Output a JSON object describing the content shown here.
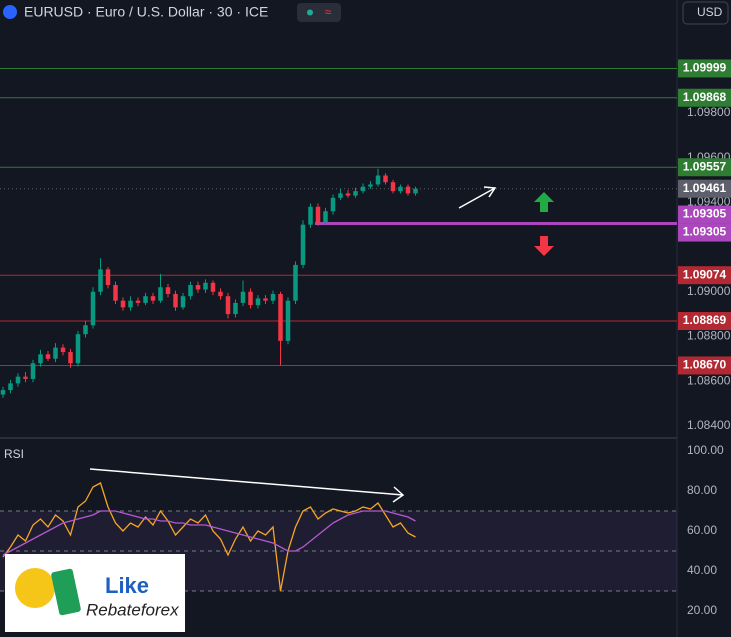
{
  "toolbar": {
    "currency": "USD"
  },
  "logo": {
    "line1": "Like",
    "line2": "Rebateforex"
  },
  "chart_data": [
    {
      "type": "candlestick",
      "title": "EURUSD · Euro / U.S. Dollar · 30 · ICE",
      "up_color": "#089981",
      "down_color": "#f23645",
      "ylim": [
        1.0835,
        1.1018
      ],
      "yticks": [
        {
          "value": 1.098,
          "label": "1.09800"
        },
        {
          "value": 1.096,
          "label": "1.09600"
        },
        {
          "value": 1.094,
          "label": "1.09400"
        },
        {
          "value": 1.09,
          "label": "1.09000"
        },
        {
          "value": 1.088,
          "label": "1.08800"
        },
        {
          "value": 1.086,
          "label": "1.08600"
        },
        {
          "value": 1.084,
          "label": "1.08400"
        }
      ],
      "levels": [
        {
          "price": 1.09999,
          "color": "#2e7d32",
          "line_width": 1
        },
        {
          "price": 1.09868,
          "color": "#2e7d32",
          "line_width": 1
        },
        {
          "price": 1.09557,
          "color": "#2e7d32",
          "line_width": 1
        },
        {
          "price": 1.09461,
          "color": "#5d606b",
          "line_width": 1,
          "dotted": true
        },
        {
          "price": 1.09305,
          "color": "#ab47bc",
          "line_width": 3,
          "label_count": 2
        },
        {
          "price": 1.09074,
          "color": "#b22833",
          "line_width": 1
        },
        {
          "price": 1.08869,
          "color": "#b22833",
          "line_width": 1
        },
        {
          "price": {
            "value": 1.0867,
            "label": "1.08670"
          },
          "color": "#b22833",
          "line_width": 1
        }
      ],
      "open": [
        1.0854,
        1.0856,
        1.0859,
        1.0862,
        1.0861,
        1.0868,
        1.0872,
        1.087,
        1.0875,
        1.0873,
        1.0868,
        1.0881,
        1.0885,
        1.09,
        1.091,
        1.0903,
        1.0896,
        1.0893,
        1.0896,
        1.0895,
        1.0898,
        1.0896,
        1.0902,
        1.0899,
        1.0893,
        1.0898,
        1.0903,
        1.0901,
        1.0904,
        1.09,
        1.0898,
        1.089,
        1.0895,
        1.09,
        1.0894,
        1.0897,
        1.0896,
        1.0899,
        1.0878,
        1.0896,
        1.0912,
        1.093,
        1.0938,
        1.0931,
        1.0936,
        1.0942,
        1.0944,
        1.0943,
        1.0945,
        1.0947,
        1.0948,
        1.0952,
        1.0949,
        1.0945,
        1.0947,
        1.0944
      ],
      "high": [
        1.08575,
        1.08605,
        1.08635,
        1.0864,
        1.08695,
        1.0874,
        1.08735,
        1.0877,
        1.08765,
        1.08745,
        1.08825,
        1.0887,
        1.0902,
        1.0915,
        1.0911,
        1.09045,
        1.08975,
        1.0898,
        1.08975,
        1.08995,
        1.08995,
        1.0908,
        1.09035,
        1.09005,
        1.08995,
        1.09045,
        1.09045,
        1.09055,
        1.0905,
        1.09015,
        1.08995,
        1.08965,
        1.0905,
        1.09015,
        1.08985,
        1.08985,
        1.09005,
        1.09,
        1.08975,
        1.09135,
        1.0932,
        1.09395,
        1.09395,
        1.09375,
        1.09435,
        1.0946,
        1.09455,
        1.09465,
        1.09485,
        1.09495,
        1.0955,
        1.0953,
        1.095,
        1.0948,
        1.0948,
        1.0947
      ],
      "low": [
        1.08525,
        1.08545,
        1.08575,
        1.08595,
        1.08595,
        1.08665,
        1.0869,
        1.08685,
        1.08715,
        1.0866,
        1.08665,
        1.08795,
        1.08835,
        1.08985,
        1.09015,
        1.08945,
        1.08915,
        1.08915,
        1.08935,
        1.0894,
        1.08945,
        1.0895,
        1.08975,
        1.08915,
        1.0892,
        1.08965,
        1.08995,
        1.08995,
        1.08985,
        1.08965,
        1.0888,
        1.08885,
        1.08935,
        1.08925,
        1.08925,
        1.08945,
        1.08945,
        1.0867,
        1.08765,
        1.08945,
        1.09105,
        1.09285,
        1.09295,
        1.093,
        1.09345,
        1.0941,
        1.0942,
        1.0942,
        1.0944,
        1.0946,
        1.0947,
        1.0948,
        1.0944,
        1.0944,
        1.0943,
        1.0943
      ],
      "close": [
        1.0856,
        1.0859,
        1.0862,
        1.0861,
        1.0868,
        1.0872,
        1.087,
        1.0875,
        1.0873,
        1.0868,
        1.0881,
        1.0885,
        1.09,
        1.091,
        1.0903,
        1.0896,
        1.0893,
        1.0896,
        1.0895,
        1.0898,
        1.0896,
        1.0902,
        1.0899,
        1.0893,
        1.0898,
        1.0903,
        1.0901,
        1.0904,
        1.09,
        1.0898,
        1.089,
        1.0895,
        1.09,
        1.0894,
        1.0897,
        1.0896,
        1.0899,
        1.0878,
        1.0896,
        1.0912,
        1.093,
        1.0938,
        1.0931,
        1.0936,
        1.0942,
        1.0944,
        1.0943,
        1.0945,
        1.0947,
        1.0948,
        1.0952,
        1.0949,
        1.0945,
        1.0947,
        1.0944,
        1.09461
      ]
    },
    {
      "type": "line",
      "title": "RSI",
      "ylim": [
        7,
        105.5
      ],
      "yticks": [
        {
          "value": 100,
          "label": "100.00"
        },
        {
          "value": 80,
          "label": "80.00"
        },
        {
          "value": 60,
          "label": "60.00"
        },
        {
          "value": 40,
          "label": "40.00"
        },
        {
          "value": 20,
          "label": "20.00"
        }
      ],
      "bands": [
        70,
        50,
        30
      ],
      "band_fill": "rgba(126,87,194,0.1)",
      "series": [
        {
          "color": "#f5a623",
          "values": [
            47,
            52,
            58,
            55,
            63,
            66,
            62,
            68,
            65,
            58,
            72,
            75,
            82,
            84,
            72,
            64,
            60,
            64,
            62,
            67,
            63,
            70,
            65,
            58,
            62,
            66,
            64,
            68,
            60,
            56,
            48,
            56,
            62,
            55,
            60,
            58,
            62,
            30,
            50,
            62,
            70,
            72,
            66,
            69,
            71,
            70,
            69,
            70,
            72,
            71,
            74,
            68,
            62,
            64,
            59,
            57
          ]
        },
        {
          "color": "#b45ad0",
          "values": [
            48,
            50,
            52,
            54,
            56,
            58,
            60,
            62,
            64,
            65,
            66,
            67,
            68,
            70,
            70,
            70,
            69,
            68,
            67,
            66,
            66,
            65,
            65,
            64,
            64,
            63,
            63,
            63,
            62,
            61,
            60,
            59,
            58,
            57,
            56,
            55,
            54,
            52,
            50,
            50,
            52,
            55,
            58,
            61,
            64,
            66,
            68,
            69,
            70,
            70,
            70,
            70,
            69,
            68,
            67,
            65
          ]
        }
      ]
    }
  ]
}
